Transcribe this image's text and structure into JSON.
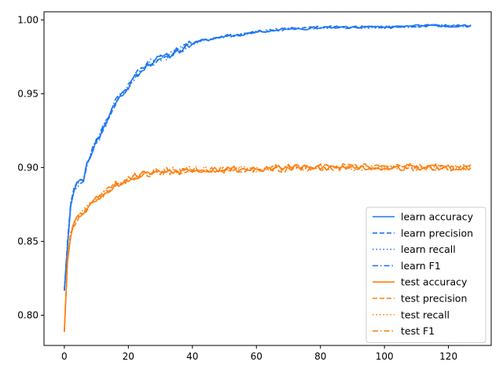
{
  "chart_data": {
    "type": "line",
    "title": "",
    "xlabel": "",
    "ylabel": "",
    "xlim": [
      -6.35,
      133.35
    ],
    "ylim": [
      0.7795,
      1.0055
    ],
    "xticks": [
      0,
      20,
      40,
      60,
      80,
      100,
      120
    ],
    "yticks": [
      0.8,
      0.85,
      0.9,
      0.95,
      1.0
    ],
    "xtick_labels": [
      "0",
      "20",
      "40",
      "60",
      "80",
      "100",
      "120"
    ],
    "ytick_labels": [
      "0.80",
      "0.85",
      "0.90",
      "0.95",
      "1.00"
    ],
    "grid": false,
    "legend_position": "lower-right",
    "colors": {
      "learn": "#1f77f4",
      "test": "#ff7f0e"
    },
    "anchors_learn": [
      [
        0,
        0.818
      ],
      [
        1,
        0.848
      ],
      [
        2,
        0.875
      ],
      [
        3,
        0.886
      ],
      [
        4,
        0.889
      ],
      [
        5,
        0.89
      ],
      [
        6,
        0.893
      ],
      [
        7,
        0.902
      ],
      [
        8,
        0.908
      ],
      [
        9,
        0.913
      ],
      [
        10,
        0.918
      ],
      [
        11,
        0.921
      ],
      [
        12,
        0.927
      ],
      [
        13,
        0.93
      ],
      [
        14,
        0.935
      ],
      [
        15,
        0.94
      ],
      [
        16,
        0.944
      ],
      [
        17,
        0.947
      ],
      [
        18,
        0.95
      ],
      [
        19,
        0.953
      ],
      [
        20,
        0.955
      ],
      [
        21,
        0.958
      ],
      [
        22,
        0.961
      ],
      [
        23,
        0.964
      ],
      [
        24,
        0.966
      ],
      [
        25,
        0.968
      ],
      [
        26,
        0.97
      ],
      [
        28,
        0.972
      ],
      [
        30,
        0.974
      ],
      [
        32,
        0.975
      ],
      [
        34,
        0.978
      ],
      [
        36,
        0.98
      ],
      [
        38,
        0.982
      ],
      [
        40,
        0.984
      ],
      [
        43,
        0.986
      ],
      [
        46,
        0.987
      ],
      [
        50,
        0.989
      ],
      [
        55,
        0.99
      ],
      [
        60,
        0.992
      ],
      [
        65,
        0.993
      ],
      [
        70,
        0.994
      ],
      [
        75,
        0.994
      ],
      [
        80,
        0.995
      ],
      [
        90,
        0.995
      ],
      [
        100,
        0.995
      ],
      [
        110,
        0.996
      ],
      [
        120,
        0.996
      ],
      [
        127,
        0.996
      ]
    ],
    "anchors_test": [
      [
        0,
        0.79
      ],
      [
        1,
        0.838
      ],
      [
        2,
        0.855
      ],
      [
        3,
        0.862
      ],
      [
        4,
        0.866
      ],
      [
        5,
        0.868
      ],
      [
        6,
        0.87
      ],
      [
        7,
        0.873
      ],
      [
        8,
        0.875
      ],
      [
        9,
        0.877
      ],
      [
        10,
        0.879
      ],
      [
        12,
        0.882
      ],
      [
        14,
        0.885
      ],
      [
        16,
        0.888
      ],
      [
        18,
        0.89
      ],
      [
        20,
        0.892
      ],
      [
        22,
        0.894
      ],
      [
        24,
        0.895
      ],
      [
        26,
        0.896
      ],
      [
        28,
        0.897
      ],
      [
        30,
        0.897
      ],
      [
        33,
        0.898
      ],
      [
        36,
        0.898
      ],
      [
        40,
        0.899
      ],
      [
        50,
        0.899
      ],
      [
        60,
        0.899
      ],
      [
        80,
        0.9
      ],
      [
        100,
        0.9
      ],
      [
        127,
        0.9
      ]
    ],
    "series": [
      {
        "name": "learn accuracy",
        "group": "learn",
        "dash": "solid",
        "noise": 0.0025,
        "seed": 11
      },
      {
        "name": "learn precision",
        "group": "learn",
        "dash": "dashed",
        "noise": 0.003,
        "seed": 23
      },
      {
        "name": "learn recall",
        "group": "learn",
        "dash": "dotted",
        "noise": 0.0025,
        "seed": 37
      },
      {
        "name": "learn F1",
        "group": "learn",
        "dash": "dashdot",
        "noise": 0.0025,
        "seed": 41
      },
      {
        "name": "test accuracy",
        "group": "test",
        "dash": "solid",
        "noise": 0.0022,
        "seed": 53
      },
      {
        "name": "test precision",
        "group": "test",
        "dash": "dashed",
        "noise": 0.0028,
        "seed": 67
      },
      {
        "name": "test recall",
        "group": "test",
        "dash": "dotted",
        "noise": 0.0022,
        "seed": 71
      },
      {
        "name": "test F1",
        "group": "test",
        "dash": "dashdot",
        "noise": 0.0022,
        "seed": 83
      }
    ]
  }
}
